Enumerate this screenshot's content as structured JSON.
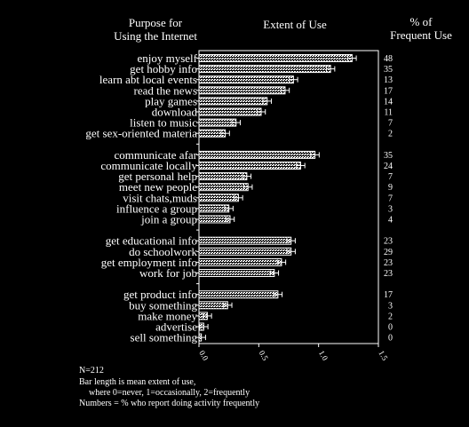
{
  "headers": {
    "purpose_line1": "Purpose for",
    "purpose_line2": "Using the Internet",
    "extent": "Extent of Use",
    "pct_line1": "% of",
    "pct_line2": "Frequent Use"
  },
  "notes": {
    "n": "N=212",
    "line1": "Bar length is mean extent of use,",
    "line2": "where 0=never, 1=occasionally, 2=frequently",
    "line3": "Numbers = % who report doing activity frequently"
  },
  "chart_data": {
    "type": "bar",
    "orientation": "horizontal",
    "xlim": [
      0,
      1.5
    ],
    "x_ticks": [
      "0.0",
      "0.5",
      "1.0",
      "1.5"
    ],
    "error_bars": true,
    "groups": [
      {
        "categories": [
          "enjoy myself",
          "get hobby info",
          "learn abt local events",
          "read the news",
          "play games",
          "download",
          "listen to music",
          "get sex-oriented materia"
        ],
        "values": [
          1.28,
          1.1,
          0.79,
          0.72,
          0.57,
          0.52,
          0.31,
          0.22
        ],
        "pct_frequent": [
          "48",
          "35",
          "13",
          "17",
          "14",
          "11",
          "7",
          "2"
        ]
      },
      {
        "categories": [
          "communicate afar",
          "communicate locally",
          "get personal help",
          "meet new people",
          "visit chats,muds",
          "influence a group",
          "join a group"
        ],
        "values": [
          0.97,
          0.85,
          0.4,
          0.41,
          0.33,
          0.25,
          0.26
        ],
        "pct_frequent": [
          "35",
          "24",
          "7",
          "9",
          "7",
          "3",
          "4"
        ]
      },
      {
        "categories": [
          "get educational info",
          "do schoolwork",
          "get employment info",
          "work for job"
        ],
        "values": [
          0.77,
          0.77,
          0.69,
          0.63
        ],
        "pct_frequent": [
          "23",
          "29",
          "23",
          "23"
        ]
      },
      {
        "categories": [
          "get product info",
          "buy something",
          "make money",
          "advertise",
          "sell something"
        ],
        "values": [
          0.66,
          0.24,
          0.07,
          0.04,
          0.02
        ],
        "pct_frequent": [
          "17",
          "3",
          "2",
          "0",
          "0"
        ]
      }
    ]
  }
}
